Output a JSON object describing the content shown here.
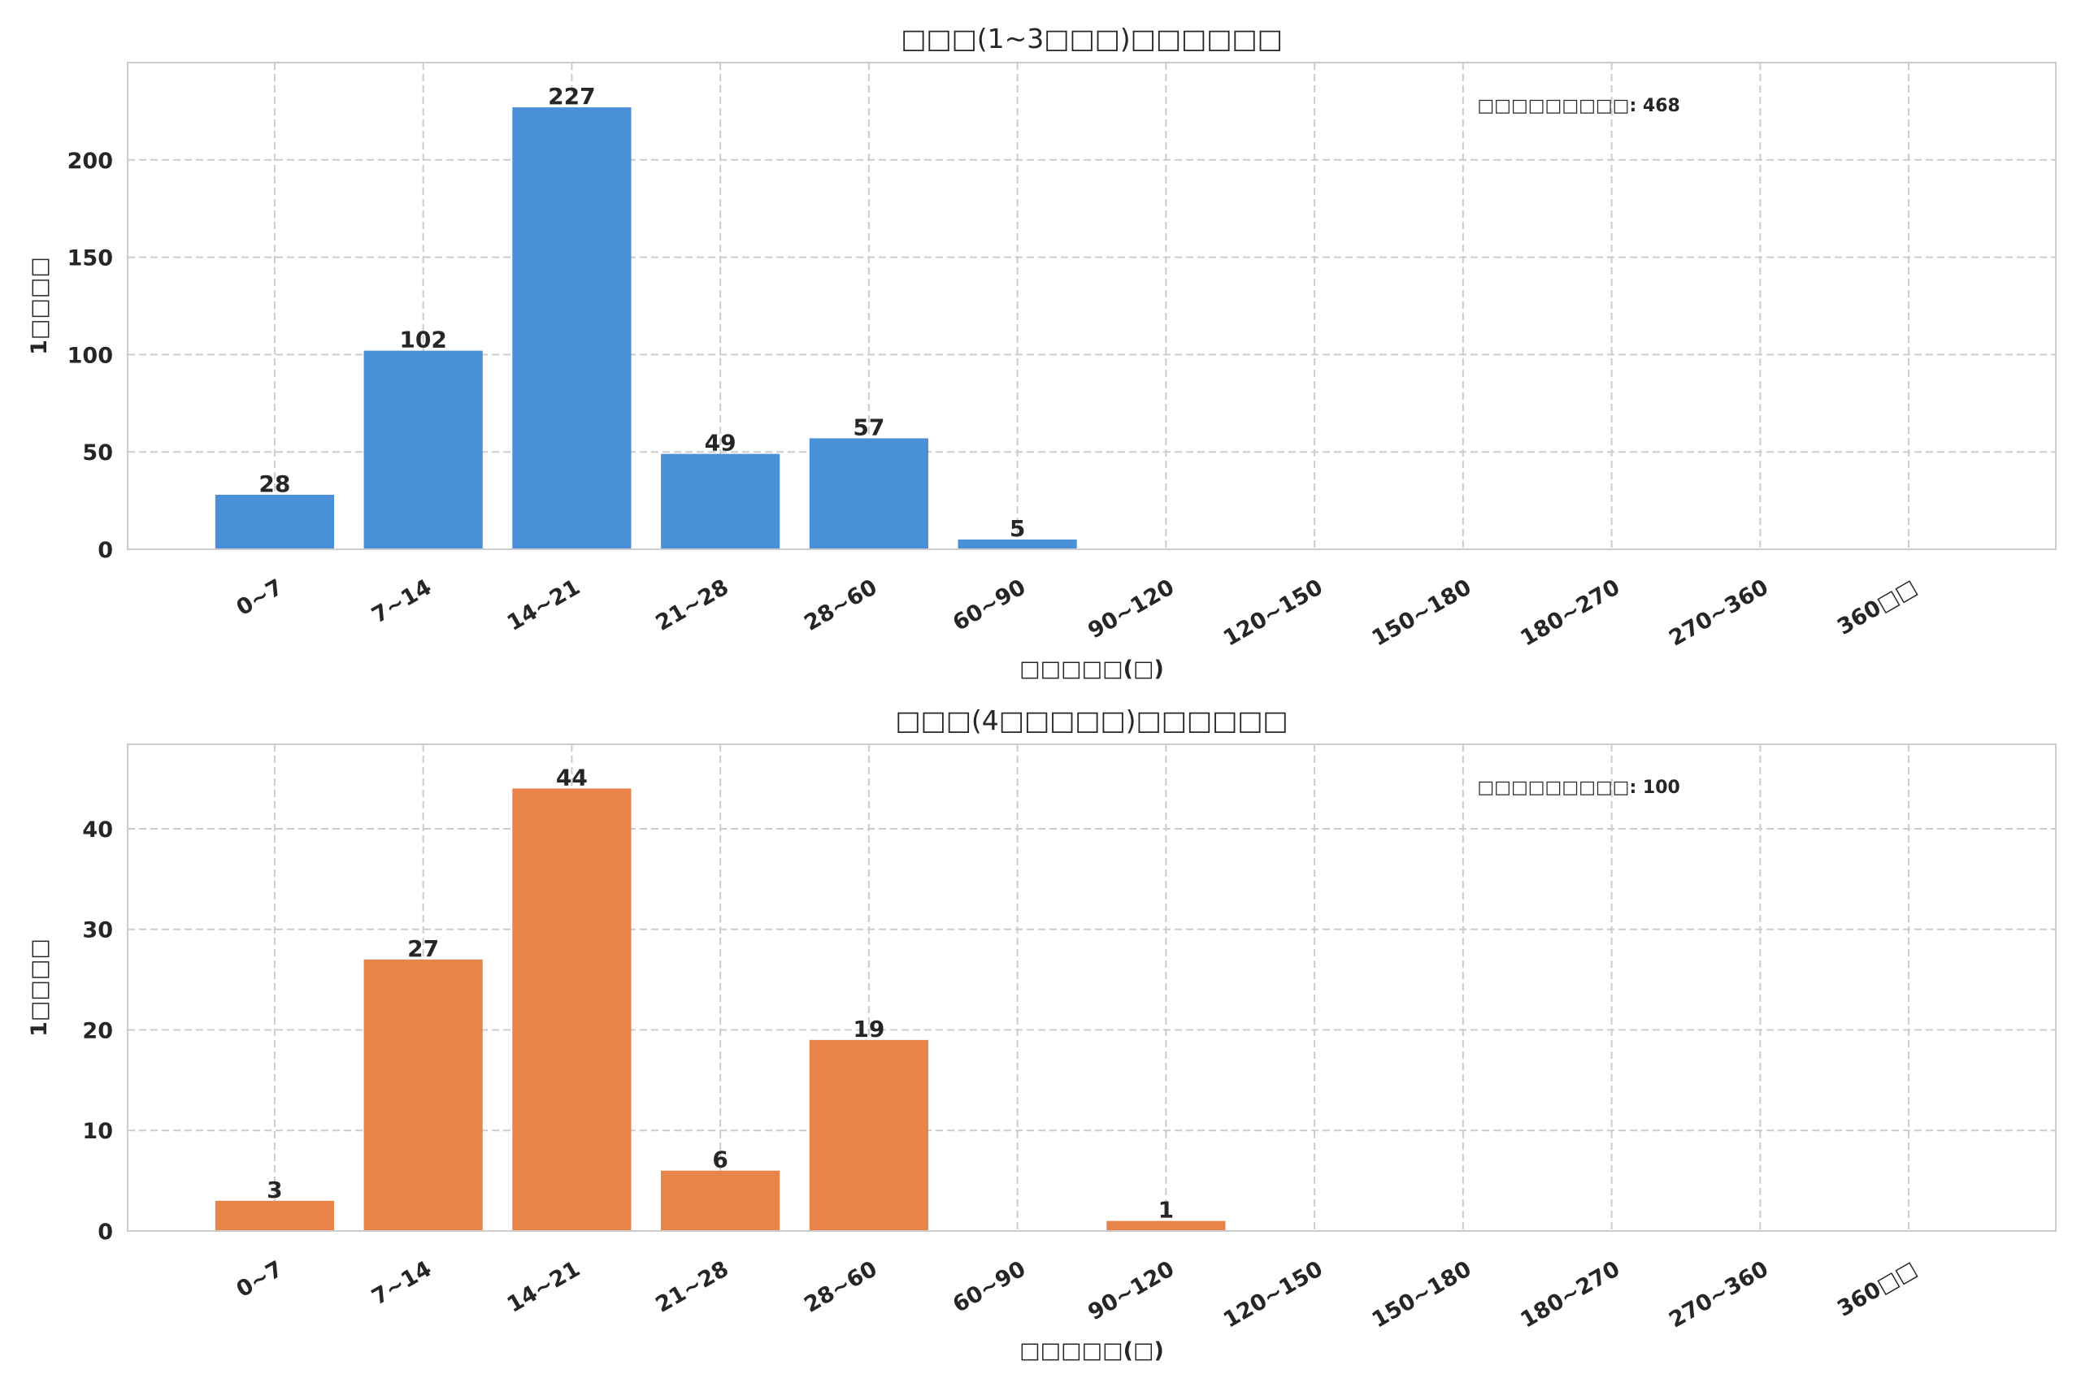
{
  "chart_data": [
    {
      "type": "bar",
      "title": "□□□(1~3□□□)□□□□□□",
      "xlabel": "□□□□□(□)",
      "ylabel": "1□□□□",
      "categories": [
        "0~7",
        "7~14",
        "14~21",
        "21~28",
        "28~60",
        "60~90",
        "90~120",
        "120~150",
        "150~180",
        "180~270",
        "270~360",
        "360□□"
      ],
      "values": [
        28,
        102,
        227,
        49,
        57,
        5,
        0,
        0,
        0,
        0,
        0,
        0
      ],
      "yticks": [
        0,
        50,
        100,
        150,
        200
      ],
      "ylim": [
        0,
        250
      ],
      "color": "#4a90d9",
      "annotation": "□□□□□□□□□: 468",
      "grid": true
    },
    {
      "type": "bar",
      "title": "□□□(4□□□□□)□□□□□□",
      "xlabel": "□□□□□(□)",
      "ylabel": "1□□□□",
      "categories": [
        "0~7",
        "7~14",
        "14~21",
        "21~28",
        "28~60",
        "60~90",
        "90~120",
        "120~150",
        "150~180",
        "180~270",
        "270~360",
        "360□□"
      ],
      "values": [
        3,
        27,
        44,
        6,
        19,
        0,
        1,
        0,
        0,
        0,
        0,
        0
      ],
      "yticks": [
        0,
        10,
        20,
        30,
        40
      ],
      "ylim": [
        0,
        48.4
      ],
      "color": "#e8844a",
      "annotation": "□□□□□□□□□: 100",
      "grid": true
    }
  ]
}
